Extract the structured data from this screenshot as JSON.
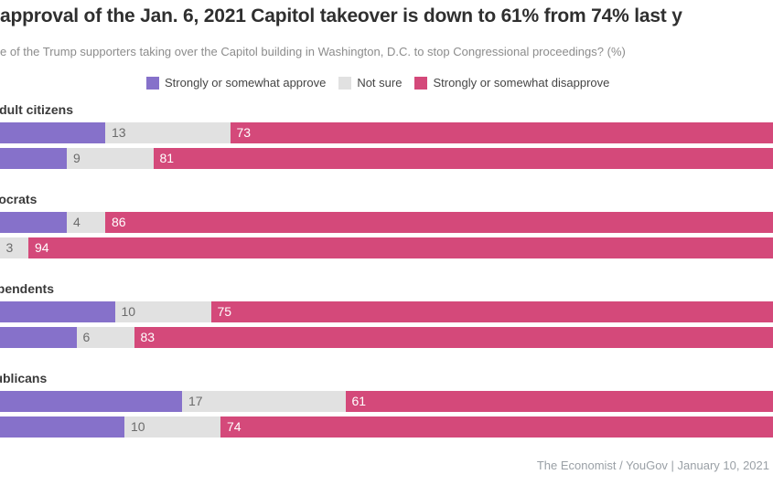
{
  "header": {
    "title_visible": "approval of the Jan. 6, 2021 Capitol takeover is down to 61% from 74% last y",
    "subtitle_visible": "e of the Trump supporters taking over the Capitol building in Washington, D.C. to stop Congressional proceedings? (%)"
  },
  "footer": {
    "source": "The Economist / YouGov | January 10, 2021"
  },
  "chart_data": {
    "type": "bar",
    "variant": "horizontal-stacked",
    "unit": "%",
    "axis_range": [
      0,
      100
    ],
    "grid": false,
    "legend_position": "top",
    "series_keys": [
      "approve",
      "not_sure",
      "disapprove"
    ],
    "series_labels": [
      "Strongly or somewhat approve",
      "Not sure",
      "Strongly or somewhat disapprove"
    ],
    "colors": {
      "approve": "#8671ca",
      "not_sure": "#e1e1e1",
      "disapprove": "#d4497a"
    },
    "groups": [
      {
        "label": "US adult citizens",
        "rows": [
          {
            "approve": 14,
            "not_sure": 13,
            "disapprove": 73
          },
          {
            "approve": 10,
            "not_sure": 9,
            "disapprove": 81
          }
        ]
      },
      {
        "label": "Democrats",
        "rows": [
          {
            "approve": 10,
            "not_sure": 4,
            "disapprove": 86
          },
          {
            "approve": 3,
            "not_sure": 3,
            "disapprove": 94
          }
        ]
      },
      {
        "label": "Independents",
        "rows": [
          {
            "approve": 15,
            "not_sure": 10,
            "disapprove": 75
          },
          {
            "approve": 11,
            "not_sure": 6,
            "disapprove": 83
          }
        ]
      },
      {
        "label": "Republicans",
        "rows": [
          {
            "approve": 22,
            "not_sure": 17,
            "disapprove": 61
          },
          {
            "approve": 16,
            "not_sure": 10,
            "disapprove": 74
          }
        ]
      }
    ]
  }
}
